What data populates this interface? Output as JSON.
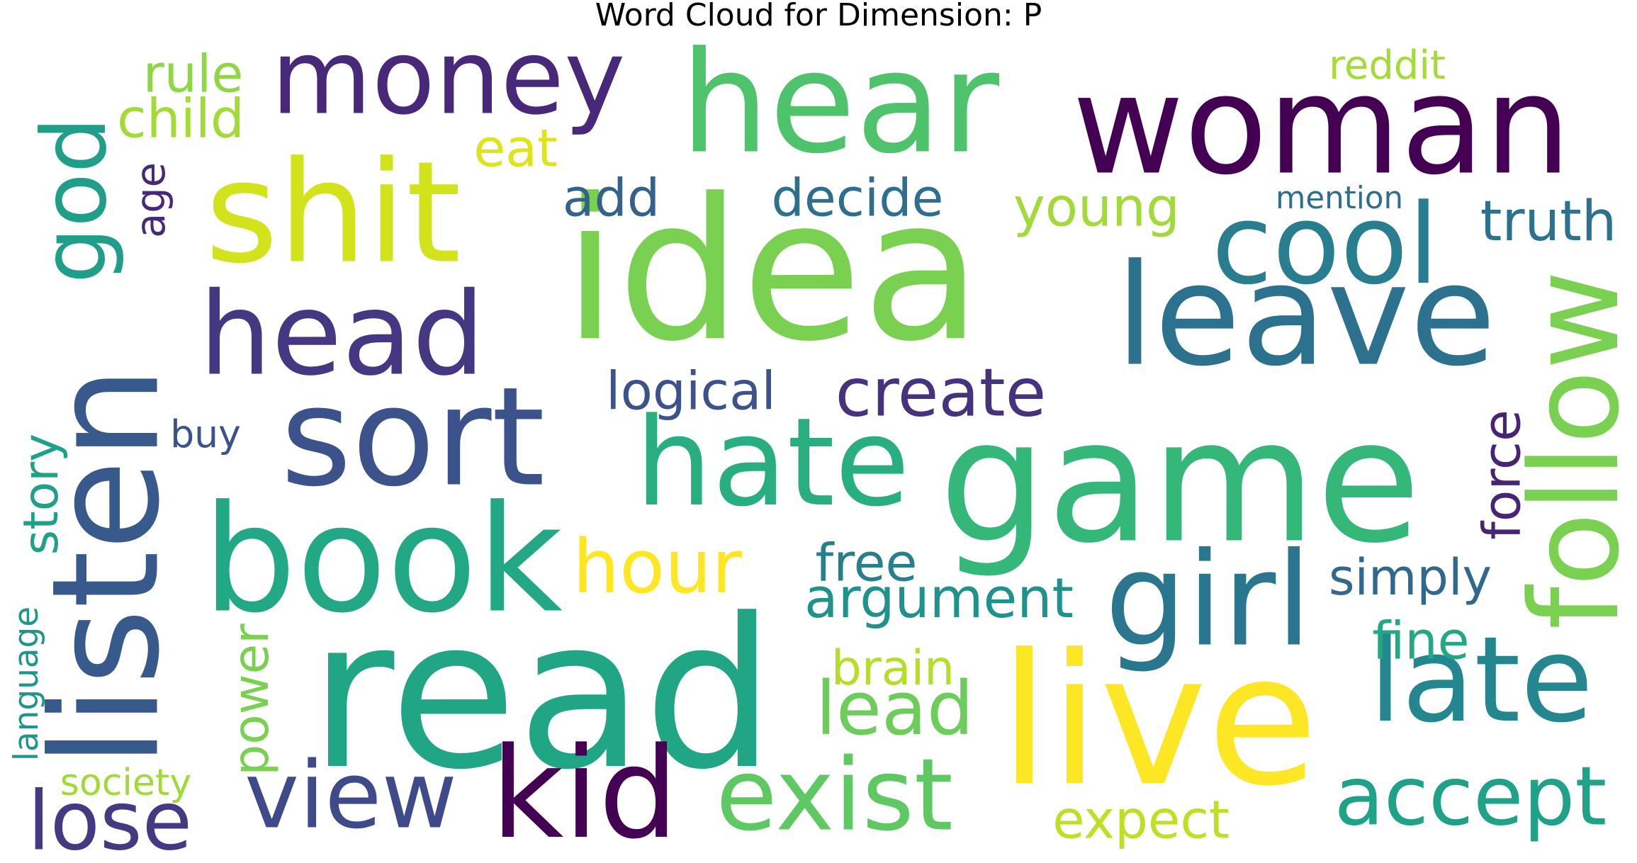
{
  "chart_data": {
    "type": "wordcloud",
    "title": "Word Cloud for Dimension: P",
    "colormap": "viridis",
    "words": [
      {
        "text": "idea",
        "color": "#7ad151"
      },
      {
        "text": "read",
        "color": "#21a685"
      },
      {
        "text": "game",
        "color": "#35b779"
      },
      {
        "text": "woman",
        "color": "#440154"
      },
      {
        "text": "live",
        "color": "#fde725"
      },
      {
        "text": "hate",
        "color": "#29af7f"
      },
      {
        "text": "listen",
        "color": "#38598c"
      },
      {
        "text": "book",
        "color": "#22a884"
      },
      {
        "text": "shit",
        "color": "#d2e21b"
      },
      {
        "text": "hear",
        "color": "#4ec36b"
      },
      {
        "text": "leave",
        "color": "#2c728e"
      },
      {
        "text": "sort",
        "color": "#3b528b"
      },
      {
        "text": "kid",
        "color": "#440154"
      },
      {
        "text": "view",
        "color": "#3e4a89"
      },
      {
        "text": "head",
        "color": "#453781"
      },
      {
        "text": "money",
        "color": "#482878"
      },
      {
        "text": "exist",
        "color": "#5ec962"
      },
      {
        "text": "follow",
        "color": "#7ad151"
      },
      {
        "text": "late",
        "color": "#24868e"
      },
      {
        "text": "girl",
        "color": "#2a768e"
      },
      {
        "text": "god",
        "color": "#1f9e89"
      },
      {
        "text": "cool",
        "color": "#287d8e"
      },
      {
        "text": "accept",
        "color": "#1fa287"
      },
      {
        "text": "lose",
        "color": "#443983"
      },
      {
        "text": "hour",
        "color": "#fde725"
      },
      {
        "text": "lead",
        "color": "#6ccd5a"
      },
      {
        "text": "create",
        "color": "#46337e"
      },
      {
        "text": "argument",
        "color": "#21918c"
      },
      {
        "text": "expect",
        "color": "#bddf26"
      },
      {
        "text": "young",
        "color": "#a2da37"
      },
      {
        "text": "truth",
        "color": "#2c728e"
      },
      {
        "text": "free",
        "color": "#277f8e"
      },
      {
        "text": "simply",
        "color": "#31688e"
      },
      {
        "text": "logical",
        "color": "#3b528b"
      },
      {
        "text": "decide",
        "color": "#2d708e"
      },
      {
        "text": "add",
        "color": "#33638d"
      },
      {
        "text": "brain",
        "color": "#b5de2b"
      },
      {
        "text": "fine",
        "color": "#22a884"
      },
      {
        "text": "force",
        "color": "#482475"
      },
      {
        "text": "rule",
        "color": "#8ed645"
      },
      {
        "text": "child",
        "color": "#a2da37"
      },
      {
        "text": "eat",
        "color": "#dfe318"
      },
      {
        "text": "story",
        "color": "#1fa188"
      },
      {
        "text": "power",
        "color": "#7ad151"
      },
      {
        "text": "age",
        "color": "#482878"
      },
      {
        "text": "reddit",
        "color": "#a5db36"
      },
      {
        "text": "mention",
        "color": "#2e6e8e"
      },
      {
        "text": "buy",
        "color": "#3b528b"
      },
      {
        "text": "society",
        "color": "#a0da39"
      },
      {
        "text": "language",
        "color": "#1f968b"
      }
    ]
  }
}
